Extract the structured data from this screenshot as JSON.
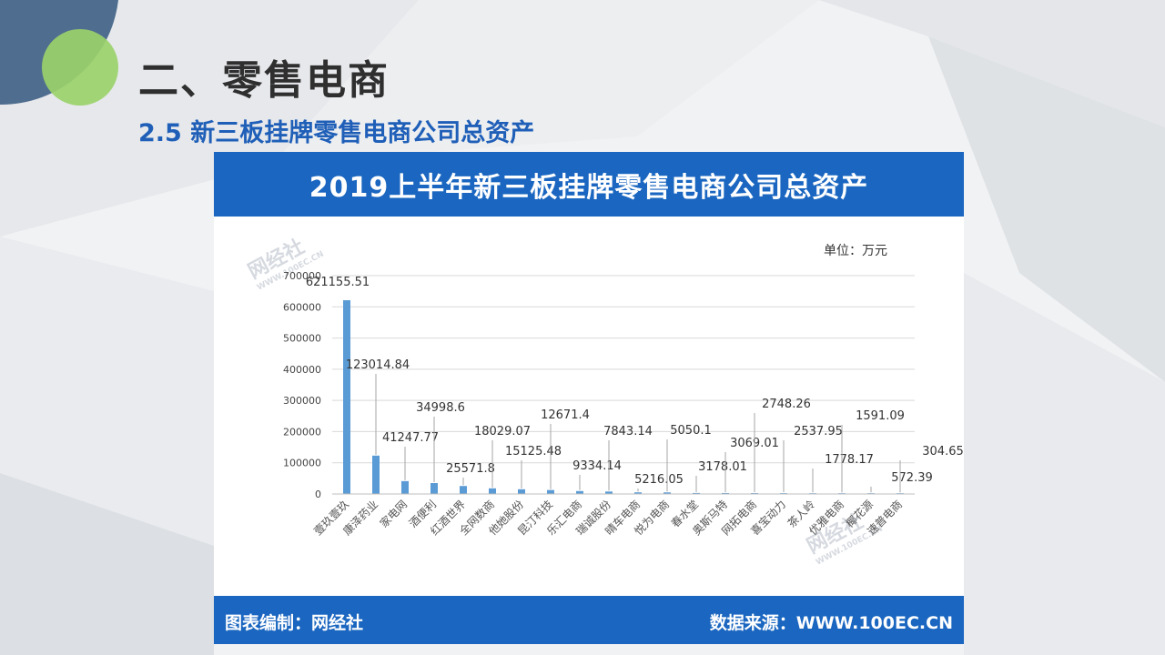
{
  "slide": {
    "title": "二、零售电商",
    "subtitle": "2.5 新三板挂牌零售电商公司总资产"
  },
  "card": {
    "header": "2019上半年新三板挂牌零售电商公司总资产",
    "unit": "单位：万元",
    "footer_left": "图表编制：网经社",
    "footer_right": "数据来源：WWW.100EC.CN",
    "watermark_text": "网经社",
    "watermark_url": "WWW.100EC.CN"
  },
  "colors": {
    "bar": "#5b9bd5",
    "header_bg": "#1a66c0",
    "grid": "#d9d9d9"
  },
  "chart_data": {
    "type": "bar",
    "title": "2019上半年新三板挂牌零售电商公司总资产",
    "ylabel": "单位：万元",
    "ylim": [
      0,
      700000
    ],
    "yticks": [
      0,
      100000,
      200000,
      300000,
      400000,
      500000,
      600000,
      700000
    ],
    "grid": true,
    "categories": [
      "壹玖壹玖",
      "康泽药业",
      "家电网",
      "酒便利",
      "红酒世界",
      "全网数商",
      "他她股份",
      "昆汀科技",
      "乐汇电商",
      "瑞诚股份",
      "晴车电商",
      "悦为电商",
      "春水堂",
      "奥斯马特",
      "网拓电商",
      "喜宝动力",
      "茶人岭",
      "优雅电商",
      "椰花源",
      "速普电商"
    ],
    "values": [
      621155.51,
      123014.84,
      41247.77,
      34998.6,
      25571.8,
      18029.07,
      15125.48,
      12671.4,
      9334.14,
      7843.14,
      5216.05,
      5050.1,
      3178.01,
      3069.01,
      2748.26,
      2537.95,
      1778.17,
      1591.09,
      572.39,
      304.65
    ],
    "data_labels": [
      "621155.51",
      "123014.84",
      "41247.77",
      "34998.6",
      "25571.8",
      "18029.07",
      "15125.48",
      "12671.4",
      "9334.14",
      "7843.14",
      "5216.05",
      "5050.1",
      "3178.01",
      "3069.01",
      "2748.26",
      "2537.95",
      "1778.17",
      "1591.09",
      "572.39",
      "304.65"
    ]
  }
}
